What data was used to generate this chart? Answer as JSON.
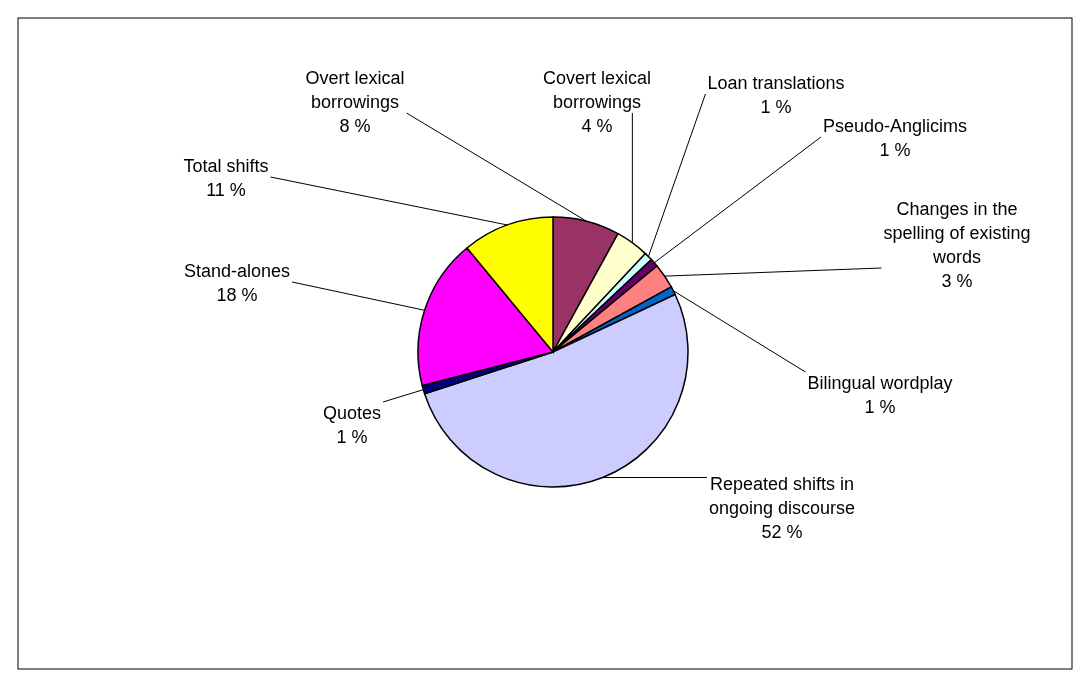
{
  "chart_data": {
    "type": "pie",
    "categories": [
      "Overt lexical borrowings",
      "Covert lexical borrowings",
      "Loan translations",
      "Pseudo-Anglicims",
      "Changes in the spelling of existing words",
      "Bilingual wordplay",
      "Repeated shifts in ongoing discourse",
      "Quotes",
      "Stand-alones",
      "Total shifts"
    ],
    "values": [
      8,
      4,
      1,
      1,
      3,
      1,
      52,
      1,
      18,
      11
    ],
    "value_labels": [
      "8 %",
      "4 %",
      "1 %",
      "1 %",
      "3 %",
      "1 %",
      "52 %",
      "1 %",
      "18 %",
      "11 %"
    ],
    "colors": [
      "#993366",
      "#ffffcc",
      "#ccffff",
      "#660066",
      "#ff8080",
      "#0066cc",
      "#ccccff",
      "#000080",
      "#ff00ff",
      "#ffff00"
    ]
  }
}
